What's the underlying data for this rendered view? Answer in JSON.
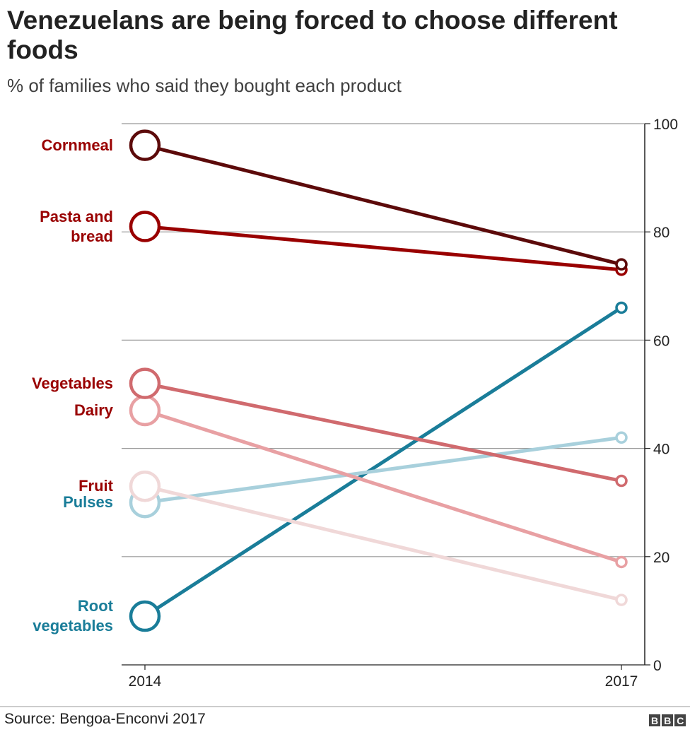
{
  "chart_data": {
    "type": "slope",
    "title": "Venezuelans are being forced to choose different foods",
    "subtitle": "% of families who said they bought each product",
    "categories": [
      "2014",
      "2017"
    ],
    "ylim": [
      0,
      100
    ],
    "yticks": [
      0,
      20,
      40,
      60,
      80,
      100
    ],
    "grid": true,
    "series": [
      {
        "name": "Cornmeal",
        "color": "#5c0a0a",
        "label_color": "#990000",
        "values": [
          96,
          74
        ]
      },
      {
        "name": "Pasta and bread",
        "color": "#990000",
        "label_color": "#990000",
        "values": [
          81,
          73
        ]
      },
      {
        "name": "Vegetables",
        "color": "#d06a6e",
        "label_color": "#990000",
        "values": [
          52,
          34
        ]
      },
      {
        "name": "Dairy",
        "color": "#e8a0a3",
        "label_color": "#990000",
        "values": [
          47,
          19
        ]
      },
      {
        "name": "Fruit",
        "color": "#f0d8d8",
        "label_color": "#990000",
        "values": [
          33,
          12
        ]
      },
      {
        "name": "Pulses",
        "color": "#a8d0dc",
        "label_color": "#1a7d99",
        "values": [
          30,
          42
        ]
      },
      {
        "name": "Root vegetables",
        "color": "#1a7d99",
        "label_color": "#1a7d99",
        "values": [
          9,
          66
        ]
      }
    ],
    "source": "Source: Bengoa-Enconvi 2017",
    "logo": "BBC"
  }
}
